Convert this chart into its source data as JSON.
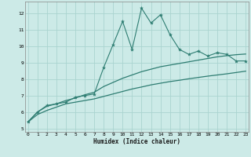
{
  "xlabel": "Humidex (Indice chaleur)",
  "ylabel": "",
  "bg_color": "#cceae7",
  "grid_color": "#aad4d0",
  "line_color": "#2e7d72",
  "x_ticks": [
    0,
    1,
    2,
    3,
    4,
    5,
    6,
    7,
    8,
    9,
    10,
    11,
    12,
    13,
    14,
    15,
    16,
    17,
    18,
    19,
    20,
    21,
    22,
    23
  ],
  "y_ticks": [
    5,
    6,
    7,
    8,
    9,
    10,
    11,
    12
  ],
  "xlim": [
    -0.3,
    23.3
  ],
  "ylim": [
    4.8,
    12.7
  ],
  "line1_x": [
    0,
    1,
    2,
    3,
    4,
    5,
    6,
    7,
    8,
    9,
    10,
    11,
    12,
    13,
    14,
    15,
    16,
    17,
    18,
    19,
    20,
    21,
    22,
    23
  ],
  "line1_y": [
    5.4,
    6.0,
    6.4,
    6.5,
    6.6,
    6.9,
    7.0,
    7.1,
    8.7,
    10.1,
    11.5,
    9.8,
    12.3,
    11.4,
    11.9,
    10.7,
    9.8,
    9.5,
    9.7,
    9.4,
    9.6,
    9.5,
    9.1,
    9.1
  ],
  "line2_x": [
    0,
    1,
    2,
    3,
    4,
    5,
    6,
    7,
    8,
    9,
    10,
    11,
    12,
    13,
    14,
    15,
    16,
    17,
    18,
    19,
    20,
    21,
    22,
    23
  ],
  "line2_y": [
    5.4,
    6.0,
    6.35,
    6.5,
    6.7,
    6.85,
    7.05,
    7.2,
    7.55,
    7.8,
    8.05,
    8.25,
    8.45,
    8.6,
    8.75,
    8.85,
    8.95,
    9.05,
    9.15,
    9.25,
    9.35,
    9.42,
    9.48,
    9.52
  ],
  "line3_x": [
    0,
    1,
    2,
    3,
    4,
    5,
    6,
    7,
    8,
    9,
    10,
    11,
    12,
    13,
    14,
    15,
    16,
    17,
    18,
    19,
    20,
    21,
    22,
    23
  ],
  "line3_y": [
    5.4,
    5.85,
    6.1,
    6.3,
    6.5,
    6.6,
    6.7,
    6.8,
    6.95,
    7.1,
    7.25,
    7.4,
    7.52,
    7.65,
    7.75,
    7.85,
    7.93,
    8.02,
    8.1,
    8.18,
    8.25,
    8.32,
    8.4,
    8.48
  ]
}
